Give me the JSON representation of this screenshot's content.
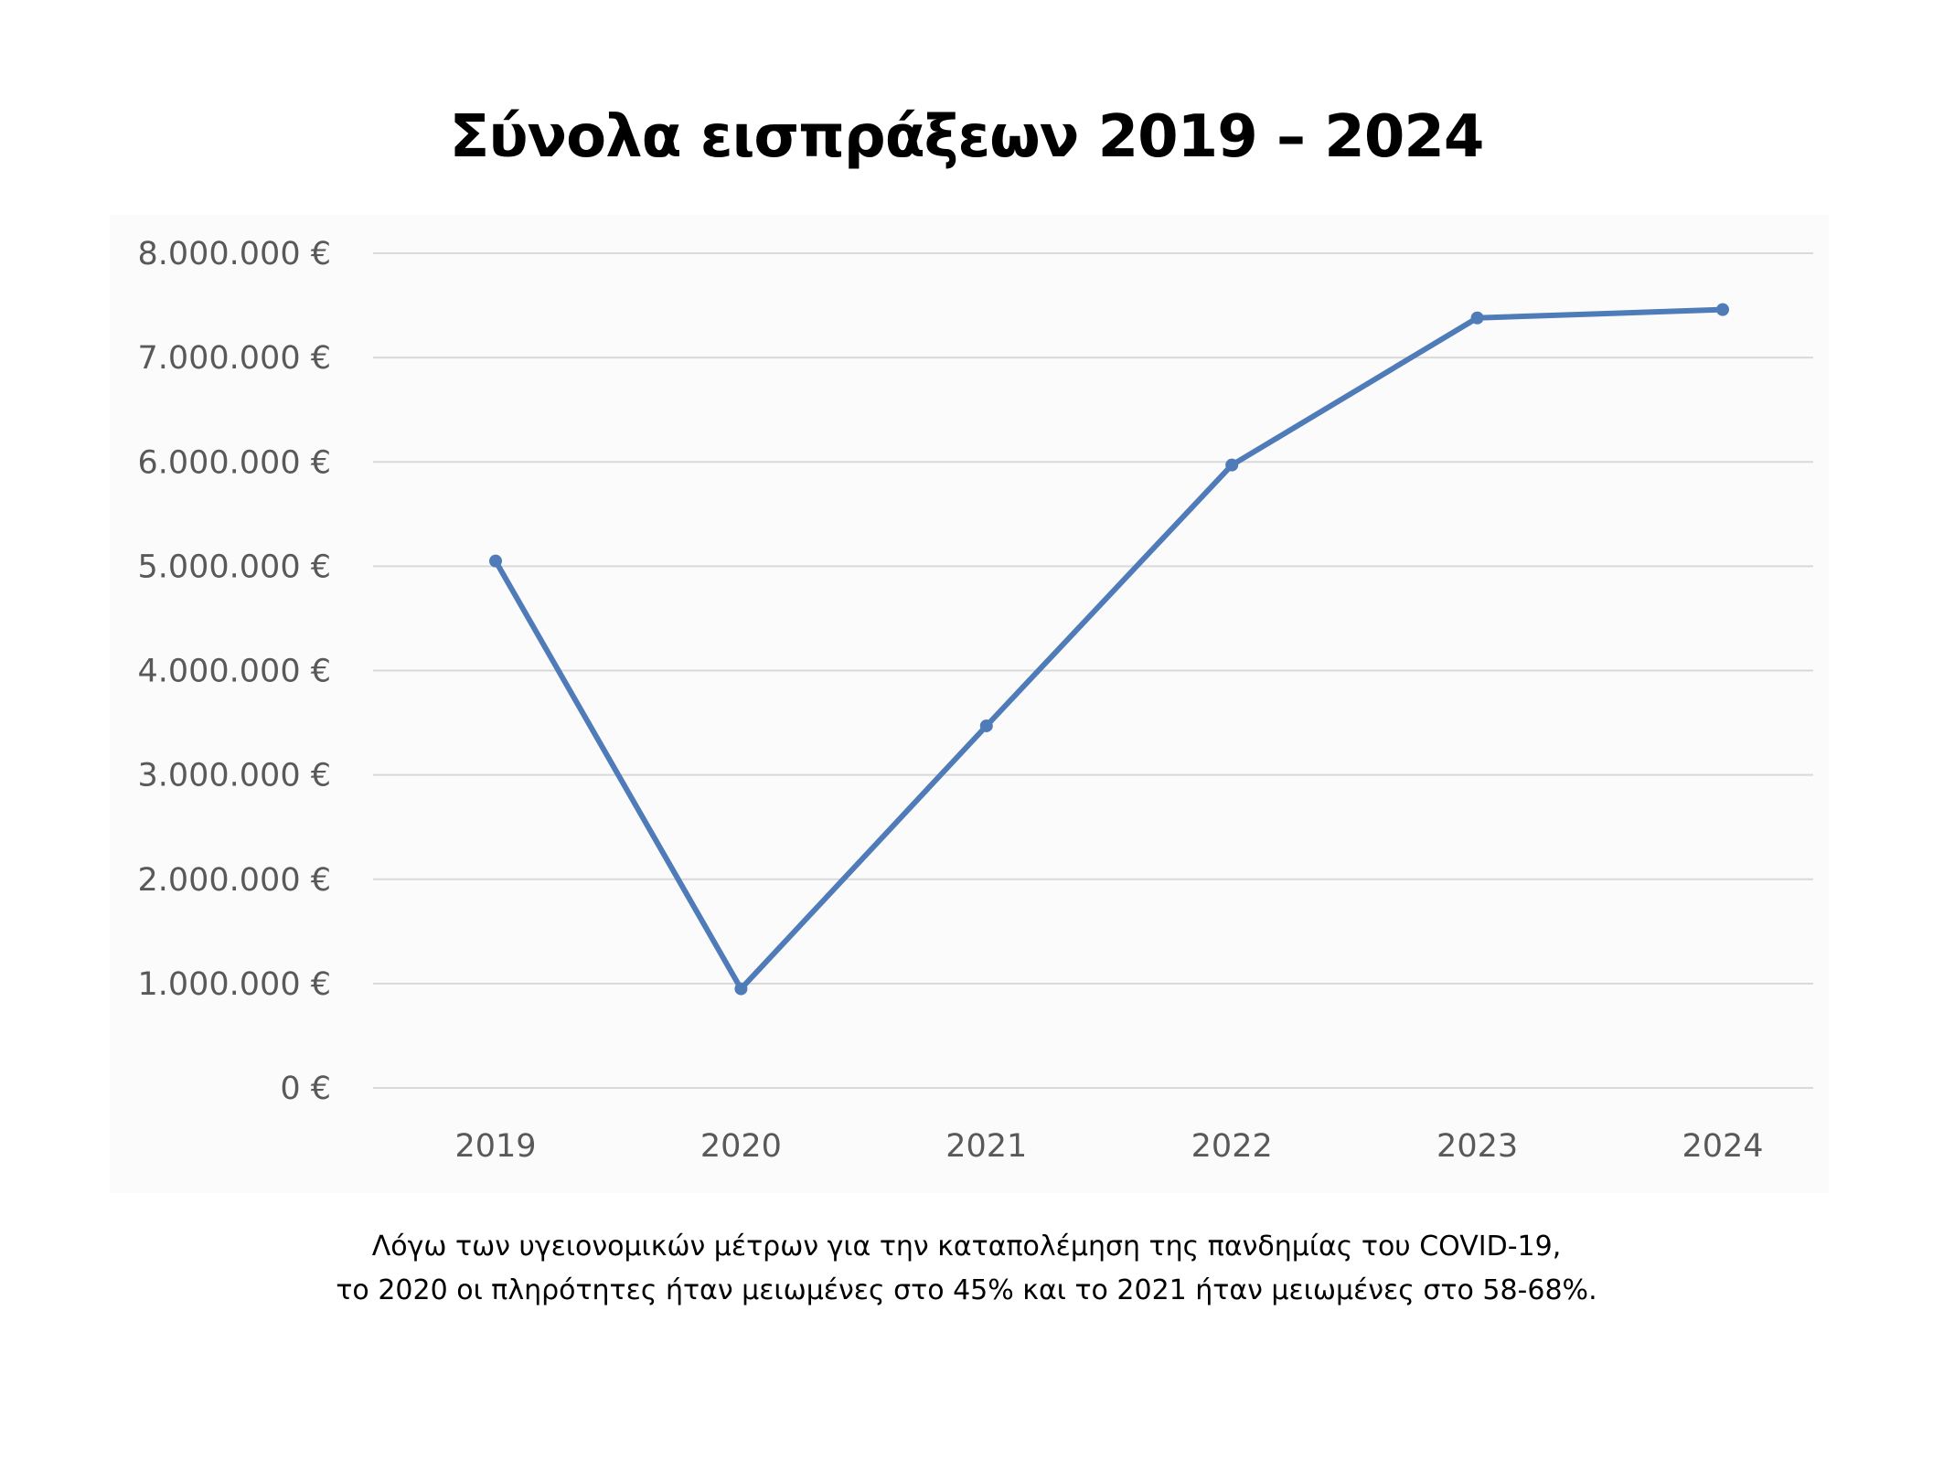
{
  "chart_data": {
    "type": "line",
    "title": "Σύνολα εισπράξεων 2019 – 2024",
    "xlabel": "",
    "ylabel": "",
    "categories": [
      "2019",
      "2020",
      "2021",
      "2022",
      "2023",
      "2024"
    ],
    "values": [
      5050000,
      950000,
      3470000,
      5970000,
      7380000,
      7460000
    ],
    "ylim": [
      0,
      8000000
    ],
    "yticks": [
      0,
      1000000,
      2000000,
      3000000,
      4000000,
      5000000,
      6000000,
      7000000,
      8000000
    ],
    "ytick_labels": [
      "0 €",
      "1.000.000 €",
      "2.000.000 €",
      "3.000.000 €",
      "4.000.000 €",
      "5.000.000 €",
      "6.000.000 €",
      "7.000.000 €",
      "8.000.000 €"
    ],
    "grid": true,
    "legend": "none"
  },
  "colors": {
    "line": "#4f7cb9",
    "grid": "#d9d9d9",
    "tick_text": "#595959",
    "plot_background": "#fbfbfb"
  },
  "caption": {
    "line1": "Λόγω των υγειονομικών μέτρων για την καταπολέμηση της πανδημίας του COVID-19,",
    "line2": "το 2020 οι πληρότητες ήταν μειωμένες στο 45% και το 2021 ήταν μειωμένες στο 58-68%."
  }
}
